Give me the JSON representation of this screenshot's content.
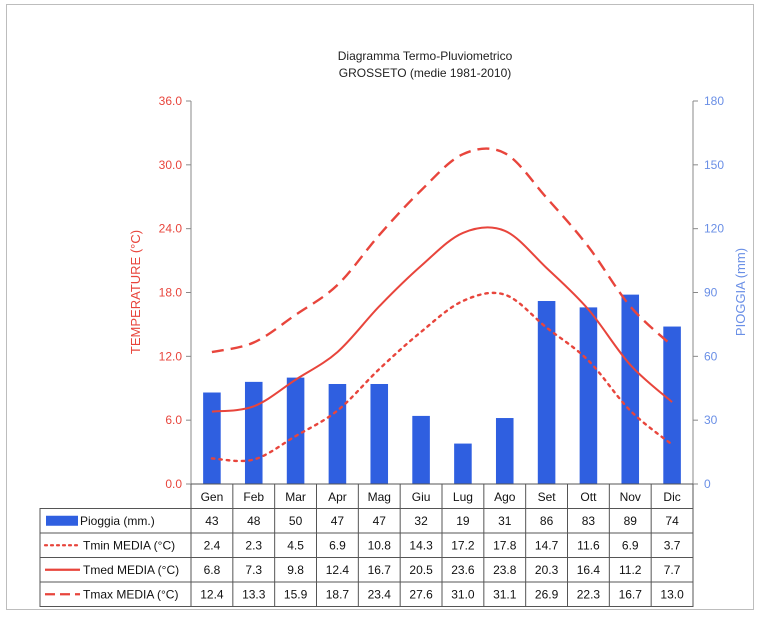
{
  "chart_data": {
    "type": "bar",
    "title": "Diagramma Termo-Pluviometrico",
    "subtitle": "GROSSETO (medie 1981-2010)",
    "categories": [
      "Gen",
      "Feb",
      "Mar",
      "Apr",
      "Mag",
      "Giu",
      "Lug",
      "Ago",
      "Set",
      "Ott",
      "Nov",
      "Dic"
    ],
    "ylabel_left": "TEMPERATURE (°C)",
    "ylabel_right": "PIOGGIA (mm)",
    "ylim_left": [
      0,
      36
    ],
    "ylim_right": [
      0,
      180
    ],
    "yticks_left": [
      "0.0",
      "6.0",
      "12.0",
      "18.0",
      "24.0",
      "30.0",
      "36.0"
    ],
    "yticks_right": [
      "0",
      "30",
      "60",
      "90",
      "120",
      "150",
      "180"
    ],
    "series": [
      {
        "name": "Pioggia (mm.)",
        "kind": "bar",
        "axis": "right",
        "color": "#2f5fe0",
        "values": [
          43,
          48,
          50,
          47,
          47,
          32,
          19,
          31,
          86,
          83,
          89,
          74
        ],
        "labels": [
          "43",
          "48",
          "50",
          "47",
          "47",
          "32",
          "19",
          "31",
          "86",
          "83",
          "89",
          "74"
        ]
      },
      {
        "name": "Tmin MEDIA (°C)",
        "kind": "line",
        "style": "dotted",
        "axis": "left",
        "color": "#e8453c",
        "values": [
          2.4,
          2.3,
          4.5,
          6.9,
          10.8,
          14.3,
          17.2,
          17.8,
          14.7,
          11.6,
          6.9,
          3.7
        ],
        "labels": [
          "2.4",
          "2.3",
          "4.5",
          "6.9",
          "10.8",
          "14.3",
          "17.2",
          "17.8",
          "14.7",
          "11.6",
          "6.9",
          "3.7"
        ]
      },
      {
        "name": "Tmed MEDIA (°C)",
        "kind": "line",
        "style": "solid",
        "axis": "left",
        "color": "#e8453c",
        "values": [
          6.8,
          7.3,
          9.8,
          12.4,
          16.7,
          20.5,
          23.6,
          23.8,
          20.3,
          16.4,
          11.2,
          7.7
        ],
        "labels": [
          "6.8",
          "7.3",
          "9.8",
          "12.4",
          "16.7",
          "20.5",
          "23.6",
          "23.8",
          "20.3",
          "16.4",
          "11.2",
          "7.7"
        ]
      },
      {
        "name": "Tmax MEDIA (°C)",
        "kind": "line",
        "style": "dashed",
        "axis": "left",
        "color": "#e8453c",
        "values": [
          12.4,
          13.3,
          15.9,
          18.7,
          23.4,
          27.6,
          31.0,
          31.1,
          26.9,
          22.3,
          16.7,
          13.0
        ],
        "labels": [
          "12.4",
          "13.3",
          "15.9",
          "18.7",
          "23.4",
          "27.6",
          "31.0",
          "31.1",
          "26.9",
          "22.3",
          "16.7",
          "13.0"
        ]
      }
    ]
  }
}
